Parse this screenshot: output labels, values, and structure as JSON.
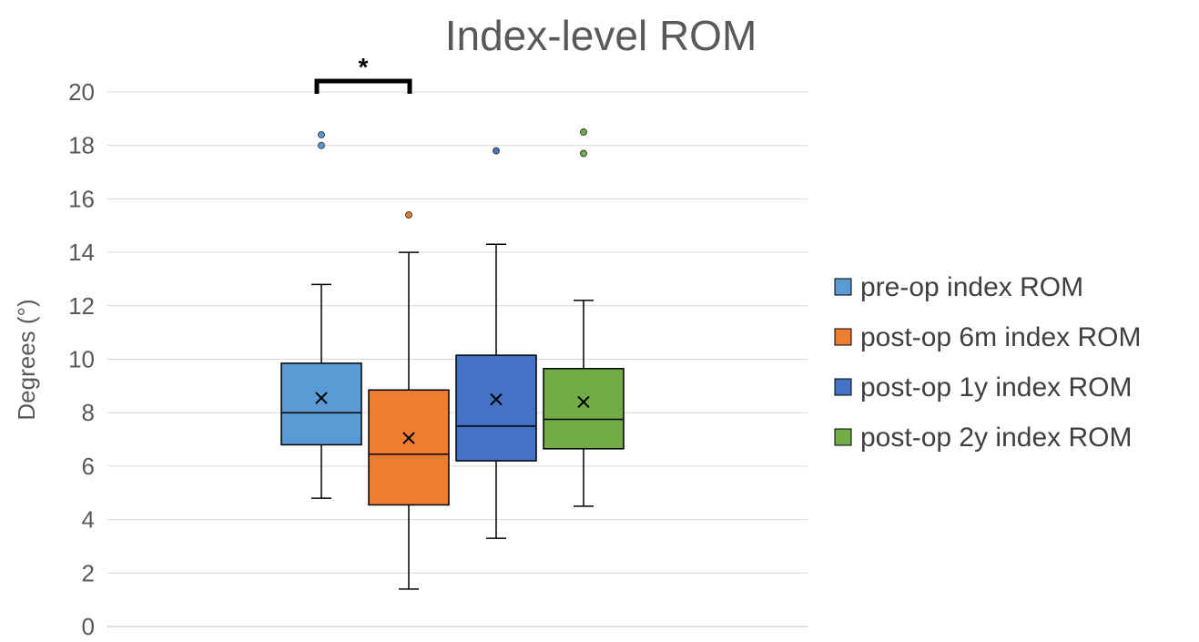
{
  "chart_data": {
    "type": "box",
    "title": "Index-level  ROM",
    "ylabel": "Degrees (°)",
    "xlabel": "",
    "ylim": [
      0,
      20
    ],
    "yticks": [
      0,
      2,
      4,
      6,
      8,
      10,
      12,
      14,
      16,
      18,
      20
    ],
    "grid": true,
    "legend_position": "right",
    "series": [
      {
        "name": "pre-op index ROM",
        "color": "#5B9BD5",
        "min": 4.8,
        "q1": 6.8,
        "median": 8.0,
        "q3": 9.85,
        "max": 12.8,
        "mean": 8.55,
        "outliers": [
          18.0,
          18.4
        ]
      },
      {
        "name": "post-op 6m index ROM",
        "color": "#ED7D31",
        "min": 1.4,
        "q1": 4.55,
        "median": 6.45,
        "q3": 8.85,
        "max": 14.0,
        "mean": 7.05,
        "outliers": [
          15.4
        ]
      },
      {
        "name": "post-op 1y index ROM",
        "color": "#4472C4",
        "min": 3.3,
        "q1": 6.2,
        "median": 7.5,
        "q3": 10.15,
        "max": 14.3,
        "mean": 8.5,
        "outliers": [
          17.8
        ]
      },
      {
        "name": "post-op 2y index ROM",
        "color": "#70AD47",
        "min": 4.5,
        "q1": 6.65,
        "median": 7.75,
        "q3": 9.65,
        "max": 12.2,
        "mean": 8.4,
        "outliers": [
          17.7,
          18.5
        ]
      }
    ],
    "annotations": [
      {
        "text": "*",
        "between": [
          0,
          1
        ]
      }
    ]
  }
}
